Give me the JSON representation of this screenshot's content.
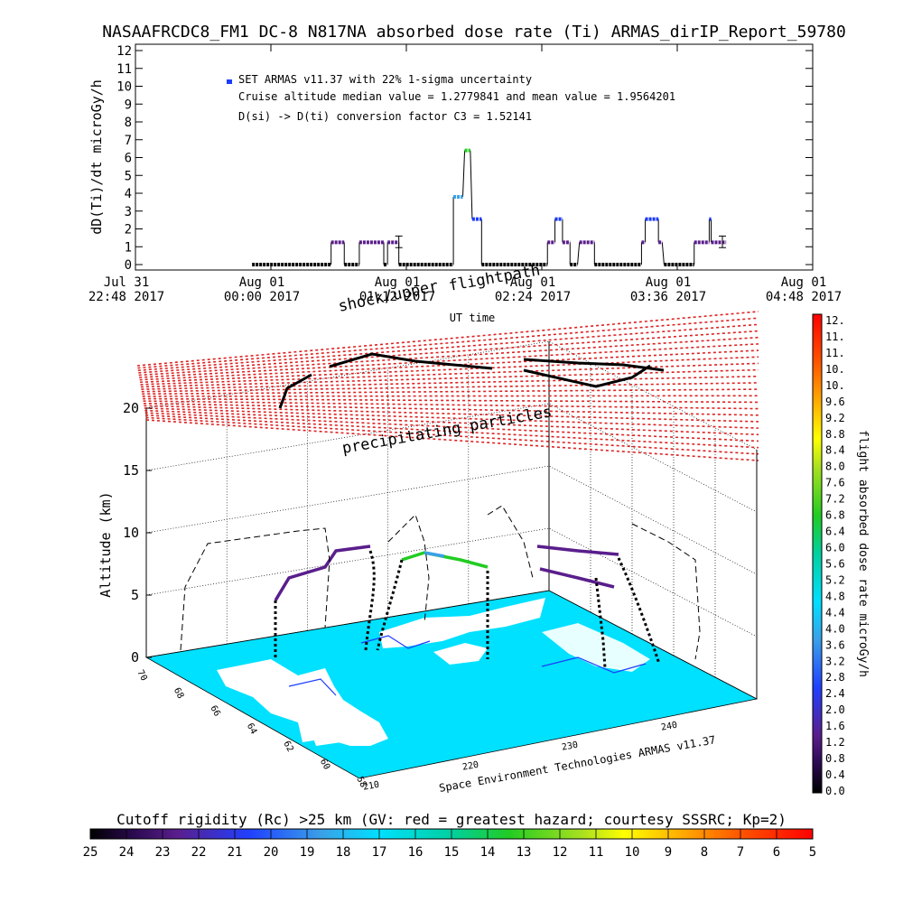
{
  "title": "NASAAFRCDC8_FM1 DC-8   N817NA absorbed dose rate (Ti) ARMAS_dirIP_Report_59780",
  "colors": {
    "series_black": "#000000",
    "series_purple": "#5a1e8c",
    "series_blue": "#1a3cff",
    "series_lightblue": "#3aa0e8",
    "series_green": "#22cc22",
    "shell_red": "#dd2222",
    "map_water": "#00e0ff",
    "map_land": "#ffffff"
  },
  "top_chart": {
    "legend_marker_label": "SET ARMAS v11.37 with 22% 1-sigma uncertainty",
    "annotation_1": "Cruise altitude median value = 1.2779841 and mean value = 1.9564201",
    "annotation_2": "D(si) -> D(ti) conversion factor C3 = 1.52141",
    "ylabel": "dD(Ti)/dt microGy/h",
    "xlabel": "UT time",
    "x_tick_labels": [
      {
        "line1": "Jul 31",
        "line2": "22:48 2017"
      },
      {
        "line1": "Aug 01",
        "line2": "00:00 2017"
      },
      {
        "line1": "Aug 01",
        "line2": "01:12 2017"
      },
      {
        "line1": "Aug 01",
        "line2": "02:24 2017"
      },
      {
        "line1": "Aug 01",
        "line2": "03:36 2017"
      },
      {
        "line1": "Aug 01",
        "line2": "04:48 2017"
      }
    ],
    "y_tick_labels": [
      "0",
      "1",
      "2",
      "3",
      "4",
      "5",
      "6",
      "7",
      "8",
      "9",
      "10",
      "11",
      "12"
    ]
  },
  "chart_data": {
    "type": "line",
    "title": "NASAAFRCDC8_FM1 DC-8   N817NA absorbed dose rate (Ti) ARMAS_dirIP_Report_59780",
    "xlabel": "UT time",
    "ylabel": "dD(Ti)/dt microGy/h",
    "x_unit": "minutes after Jul 31 22:48 2017 UT",
    "xlim": [
      0,
      360
    ],
    "ylim": [
      0,
      12
    ],
    "grid": false,
    "legend": "top-left",
    "segments": [
      {
        "x0": 62,
        "x1": 104,
        "y": 0.0,
        "color": "#000000"
      },
      {
        "x0": 104,
        "x1": 111,
        "y": 1.25,
        "color": "#5a1e8c"
      },
      {
        "x0": 111,
        "x1": 119,
        "y": 0.0,
        "color": "#000000"
      },
      {
        "x0": 119,
        "x1": 132,
        "y": 1.25,
        "color": "#5a1e8c"
      },
      {
        "x0": 132,
        "x1": 134,
        "y": 0.0,
        "color": "#000000"
      },
      {
        "x0": 134,
        "x1": 140,
        "y": 1.25,
        "color": "#5a1e8c"
      },
      {
        "x0": 140,
        "x1": 169,
        "y": 0.0,
        "color": "#000000"
      },
      {
        "x0": 169,
        "x1": 174,
        "y": 3.8,
        "color": "#3aa0e8"
      },
      {
        "x0": 175,
        "x1": 178,
        "y": 6.4,
        "color": "#22cc22"
      },
      {
        "x0": 179,
        "x1": 184,
        "y": 2.55,
        "color": "#1a3cff"
      },
      {
        "x0": 184,
        "x1": 219,
        "y": 0.0,
        "color": "#000000"
      },
      {
        "x0": 219,
        "x1": 223,
        "y": 1.25,
        "color": "#5a1e8c"
      },
      {
        "x0": 223,
        "x1": 227,
        "y": 2.55,
        "color": "#1a3cff"
      },
      {
        "x0": 227,
        "x1": 231,
        "y": 1.25,
        "color": "#5a1e8c"
      },
      {
        "x0": 231,
        "x1": 235,
        "y": 0.0,
        "color": "#000000"
      },
      {
        "x0": 236,
        "x1": 244,
        "y": 1.25,
        "color": "#5a1e8c"
      },
      {
        "x0": 244,
        "x1": 269,
        "y": 0.0,
        "color": "#000000"
      },
      {
        "x0": 269,
        "x1": 271,
        "y": 1.25,
        "color": "#5a1e8c"
      },
      {
        "x0": 271,
        "x1": 278,
        "y": 2.55,
        "color": "#1a3cff"
      },
      {
        "x0": 278,
        "x1": 280,
        "y": 1.25,
        "color": "#5a1e8c"
      },
      {
        "x0": 281,
        "x1": 297,
        "y": 0.0,
        "color": "#000000"
      },
      {
        "x0": 297,
        "x1": 305,
        "y": 1.25,
        "color": "#5a1e8c"
      },
      {
        "x0": 305,
        "x1": 306,
        "y": 2.55,
        "color": "#1a3cff"
      },
      {
        "x0": 306,
        "x1": 314,
        "y": 1.25,
        "color": "#5a1e8c"
      }
    ],
    "error_bars": [
      {
        "x": 140,
        "y": 1.25,
        "low": 0.95,
        "high": 1.6
      },
      {
        "x": 312,
        "y": 1.25,
        "low": 0.95,
        "high": 1.6
      }
    ]
  },
  "scene": {
    "shell_label": "shock/upper",
    "flightpath_label": "flightpath",
    "precip_label": "precipitating particles",
    "altitude_label": "Altitude (km)",
    "altitude_ticks": [
      "0",
      "5",
      "10",
      "15",
      "20"
    ],
    "lat_ticks": [
      "70",
      "68",
      "66",
      "64",
      "62",
      "60",
      "58"
    ],
    "lon_ticks": [
      "210",
      "220",
      "230",
      "240"
    ],
    "credit": "Space Environment Technologies ARMAS v11.37"
  },
  "colorbar_right": {
    "label": "flight absorbed dose rate microGy/h",
    "ticks": [
      "12.",
      "11.",
      "11.",
      "10.",
      "10.",
      "9.6",
      "9.2",
      "8.8",
      "8.4",
      "8.0",
      "7.6",
      "7.2",
      "6.8",
      "6.4",
      "6.0",
      "5.6",
      "5.2",
      "4.8",
      "4.4",
      "4.0",
      "3.6",
      "3.2",
      "2.8",
      "2.4",
      "2.0",
      "1.6",
      "1.2",
      "0.8",
      "0.4",
      "0.0"
    ]
  },
  "colorbar_bottom": {
    "label": "Cutoff rigidity (Rc) >25 km (GV: red = greatest hazard; courtesy SSSRC; Kp=2)",
    "ticks": [
      "25",
      "24",
      "23",
      "22",
      "21",
      "20",
      "19",
      "18",
      "17",
      "16",
      "15",
      "14",
      "13",
      "12",
      "11",
      "10",
      "9",
      "8",
      "7",
      "6",
      "5"
    ]
  }
}
